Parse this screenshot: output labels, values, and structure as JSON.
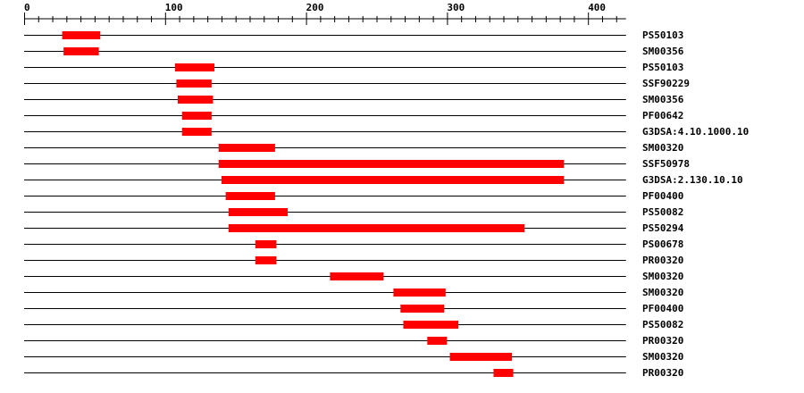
{
  "chart_data": {
    "type": "bar",
    "axis": {
      "min": 0,
      "max": 427,
      "major_ticks": [
        0,
        100,
        200,
        300,
        400
      ],
      "minor_step": 10
    },
    "bar_color": "#ff0000",
    "line_color": "#000000",
    "features": [
      {
        "label": "PS50103",
        "start": 27,
        "end": 54
      },
      {
        "label": "SM00356",
        "start": 28,
        "end": 53
      },
      {
        "label": "PS50103",
        "start": 107,
        "end": 135
      },
      {
        "label": "SSF90229",
        "start": 108,
        "end": 133
      },
      {
        "label": "SM00356",
        "start": 109,
        "end": 134
      },
      {
        "label": "PF00642",
        "start": 112,
        "end": 133
      },
      {
        "label": "G3DSA:4.10.1000.10",
        "start": 112,
        "end": 133
      },
      {
        "label": "SM00320",
        "start": 138,
        "end": 178
      },
      {
        "label": "SSF50978",
        "start": 138,
        "end": 383
      },
      {
        "label": "G3DSA:2.130.10.10",
        "start": 140,
        "end": 383
      },
      {
        "label": "PF00400",
        "start": 143,
        "end": 178
      },
      {
        "label": "PS50082",
        "start": 145,
        "end": 187
      },
      {
        "label": "PS50294",
        "start": 145,
        "end": 355
      },
      {
        "label": "PS00678",
        "start": 164,
        "end": 179
      },
      {
        "label": "PR00320",
        "start": 164,
        "end": 179
      },
      {
        "label": "SM00320",
        "start": 217,
        "end": 255
      },
      {
        "label": "SM00320",
        "start": 262,
        "end": 299
      },
      {
        "label": "PF00400",
        "start": 267,
        "end": 298
      },
      {
        "label": "PS50082",
        "start": 269,
        "end": 308
      },
      {
        "label": "PR00320",
        "start": 286,
        "end": 300
      },
      {
        "label": "SM00320",
        "start": 302,
        "end": 346
      },
      {
        "label": "PR00320",
        "start": 333,
        "end": 347
      }
    ]
  }
}
